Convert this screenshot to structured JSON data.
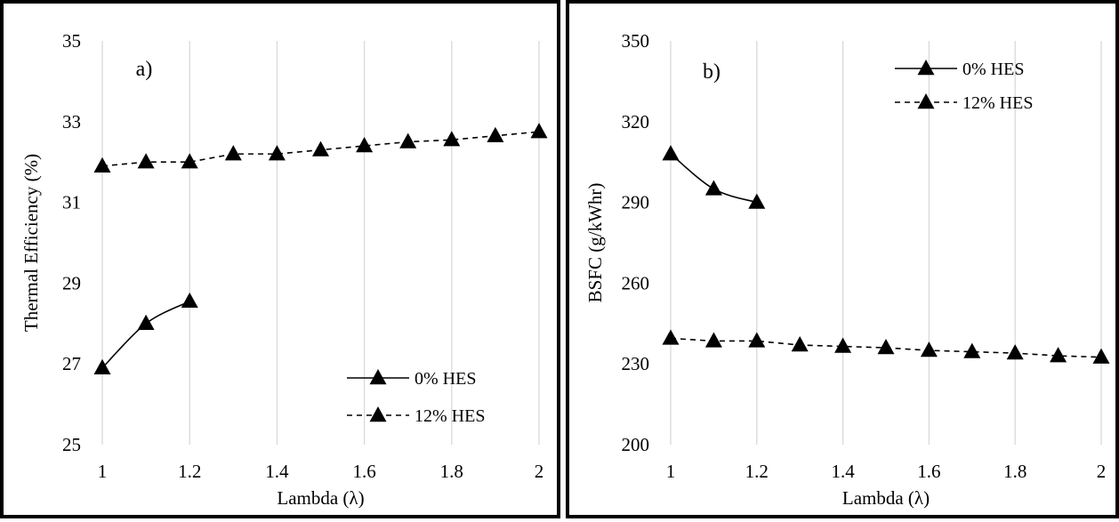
{
  "charts": [
    {
      "id": "a",
      "chart_data": {
        "type": "line",
        "panel_label": "a)",
        "xlabel": "Lambda (λ)",
        "ylabel": "Thermal Efficiency (%)",
        "xlim": [
          1,
          2
        ],
        "ylim": [
          25,
          35
        ],
        "x_ticks": [
          "1",
          "1.2",
          "1.4",
          "1.6",
          "1.8",
          "2"
        ],
        "y_ticks": [
          "25",
          "27",
          "29",
          "31",
          "33",
          "35"
        ],
        "x_tick_values": [
          1,
          1.2,
          1.4,
          1.6,
          1.8,
          2
        ],
        "y_tick_values": [
          25,
          27,
          29,
          31,
          33,
          35
        ],
        "grid": "vertical",
        "legend_position": "bottom-right",
        "series": [
          {
            "name": "0% HES",
            "line": "solid",
            "marker": "triangle",
            "x": [
              1,
              1.1,
              1.2
            ],
            "y": [
              26.9,
              28.0,
              28.55
            ]
          },
          {
            "name": "12% HES",
            "line": "dashed",
            "marker": "triangle",
            "x": [
              1,
              1.1,
              1.2,
              1.3,
              1.4,
              1.5,
              1.6,
              1.7,
              1.8,
              1.9,
              2
            ],
            "y": [
              31.9,
              32.0,
              32.0,
              32.2,
              32.2,
              32.3,
              32.4,
              32.5,
              32.55,
              32.65,
              32.75
            ]
          }
        ]
      }
    },
    {
      "id": "b",
      "chart_data": {
        "type": "line",
        "panel_label": "b)",
        "xlabel": "Lambda (λ)",
        "ylabel": "BSFC (g/kWhr)",
        "xlim": [
          1,
          2
        ],
        "ylim": [
          200,
          350
        ],
        "x_ticks": [
          "1",
          "1.2",
          "1.4",
          "1.6",
          "1.8",
          "2"
        ],
        "y_ticks": [
          "200",
          "230",
          "260",
          "290",
          "320",
          "350"
        ],
        "x_tick_values": [
          1,
          1.2,
          1.4,
          1.6,
          1.8,
          2
        ],
        "y_tick_values": [
          200,
          230,
          260,
          290,
          320,
          350
        ],
        "grid": "vertical",
        "legend_position": "top-right",
        "series": [
          {
            "name": "0% HES",
            "line": "solid",
            "marker": "triangle",
            "x": [
              1,
              1.1,
              1.2
            ],
            "y": [
              308,
              295,
              290
            ]
          },
          {
            "name": "12% HES",
            "line": "dashed",
            "marker": "triangle",
            "x": [
              1,
              1.1,
              1.2,
              1.3,
              1.4,
              1.5,
              1.6,
              1.7,
              1.8,
              1.9,
              2
            ],
            "y": [
              239.5,
              238.5,
              238.5,
              237,
              236.5,
              236,
              235,
              234.5,
              234,
              233,
              232.5
            ]
          }
        ]
      }
    }
  ]
}
